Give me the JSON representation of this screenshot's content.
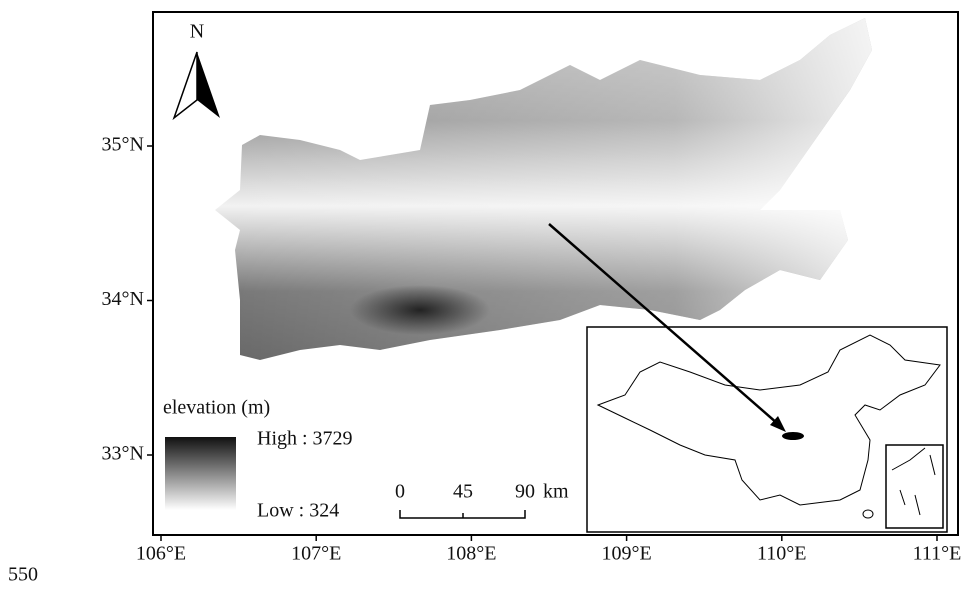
{
  "map": {
    "north_label": "N",
    "legend": {
      "title": "elevation (m)",
      "high": "High : 3729",
      "low": "Low : 324"
    },
    "scale_bar": {
      "labels": [
        "0",
        "45",
        "90"
      ],
      "unit": "km"
    },
    "lon_ticks": [
      {
        "value": 106,
        "label": "106°E"
      },
      {
        "value": 107,
        "label": "107°E"
      },
      {
        "value": 108,
        "label": "108°E"
      },
      {
        "value": 109,
        "label": "109°E"
      },
      {
        "value": 110,
        "label": "110°E"
      },
      {
        "value": 111,
        "label": "111°E"
      }
    ],
    "lat_ticks": [
      {
        "value": 35,
        "label": "35°N"
      },
      {
        "value": 34,
        "label": "34°N"
      },
      {
        "value": 33,
        "label": "33°N"
      }
    ],
    "corner_label": "550"
  }
}
